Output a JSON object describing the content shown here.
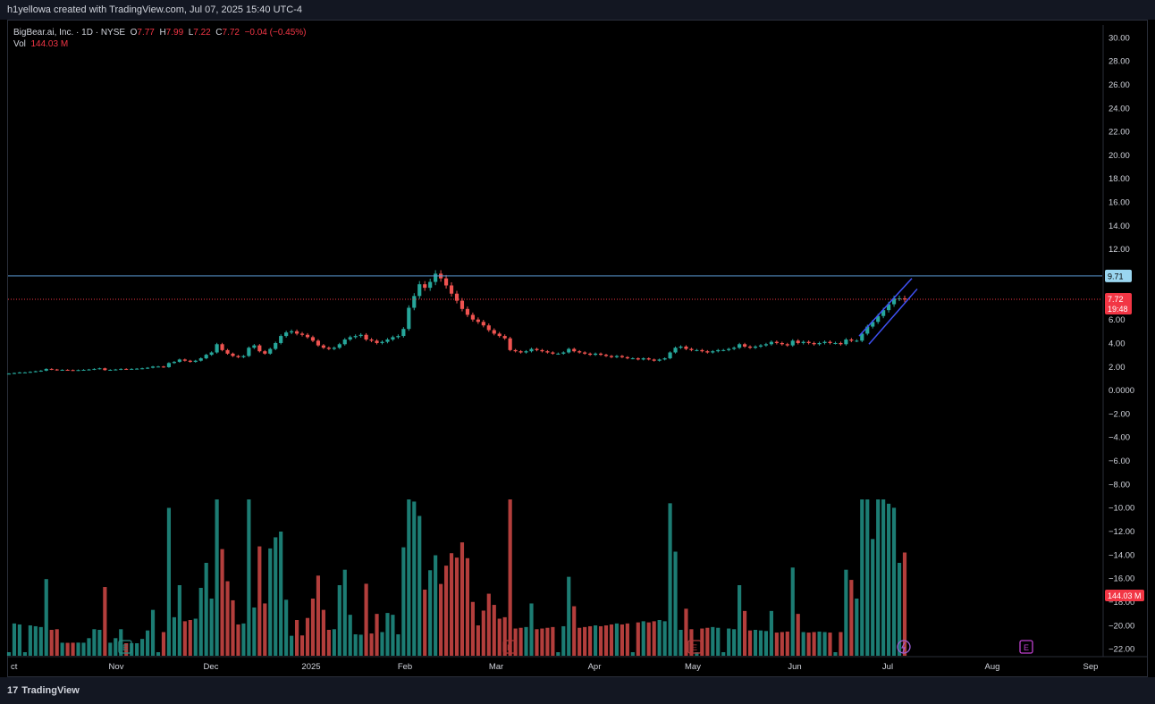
{
  "header": {
    "attribution": "h1yellowa created with TradingView.com, Jul 07, 2025 15:40 UTC-4"
  },
  "legend": {
    "symbol": "BigBear.ai, Inc. · 1D · NYSE",
    "o_label": "O",
    "o_value": "7.77",
    "h_label": "H",
    "h_value": "7.99",
    "l_label": "L",
    "l_value": "7.22",
    "c_label": "C",
    "c_value": "7.72",
    "change": "−0.04 (−0.45%)",
    "vol_label": "Vol",
    "vol_value": "144.03 M"
  },
  "footer": {
    "brand": "TradingView"
  },
  "colors": {
    "up": "#26a69a",
    "down": "#ef5350",
    "background": "#000000",
    "hline": "#5b9bd5",
    "channel": "#3f51f5",
    "last_price": "#f23645"
  },
  "chart_data": {
    "type": "candlestick",
    "price_axis": {
      "ticks": [
        "30.00",
        "28.00",
        "26.00",
        "24.00",
        "22.00",
        "20.00",
        "18.00",
        "16.00",
        "14.00",
        "12.00",
        "6.00",
        "4.00",
        "2.00",
        "0.0000",
        "−2.00",
        "−4.00",
        "−6.00",
        "−8.00",
        "−10.00",
        "−12.00",
        "−14.00",
        "−16.00",
        "−18.00",
        "−20.00",
        "−22.00"
      ],
      "range": [
        -22.6,
        30.9
      ]
    },
    "time_axis": [
      "ct",
      "Nov",
      "Dec",
      "2025",
      "Feb",
      "Mar",
      "Apr",
      "May",
      "Jun",
      "Jul",
      "Aug",
      "Sep"
    ],
    "horizontal_line": {
      "price": 9.71,
      "label": "9.71"
    },
    "last_price": {
      "price": 7.72,
      "label": "7.72",
      "countdown": "19:48"
    },
    "last_volume": {
      "label": "144.03 M"
    },
    "price_series": [
      {
        "d": "Oct",
        "v": [
          1.4,
          1.45,
          1.5,
          1.5,
          1.55,
          1.6,
          1.65,
          1.8,
          1.75,
          1.7,
          1.72,
          1.7,
          1.68,
          1.7,
          1.72,
          1.75,
          1.8,
          1.85
        ]
      },
      {
        "d": "Nov",
        "v": [
          1.7,
          1.72,
          1.75,
          1.8,
          1.78,
          1.8,
          1.82,
          1.85,
          1.9,
          2.0,
          2.0,
          1.95,
          2.3,
          2.4,
          2.6,
          2.5,
          2.4
        ]
      },
      {
        "d": "Dec",
        "v": [
          2.5,
          2.7,
          3.0,
          3.2,
          3.9,
          3.4,
          3.1,
          2.9,
          2.8,
          2.9,
          3.6,
          3.8,
          3.3,
          3.1,
          3.5,
          4.0,
          4.6,
          4.9,
          5.0,
          4.8,
          4.7,
          4.5,
          4.2
        ]
      },
      {
        "d": "2025",
        "v": [
          3.8,
          3.6,
          3.5,
          3.6,
          3.9,
          4.3,
          4.5,
          4.6,
          4.7,
          4.3,
          4.2,
          4.0,
          4.1,
          4.3,
          4.5,
          4.6,
          5.2,
          7.0,
          8.0,
          9.0,
          8.7,
          9.2,
          9.9,
          9.5,
          8.9,
          8.2,
          7.6,
          6.9,
          6.4,
          6.0,
          5.8,
          5.5,
          5.1,
          4.8,
          4.6,
          4.4
        ]
      },
      {
        "d": "Mar",
        "v": [
          3.4,
          3.3,
          3.2,
          3.3,
          3.5,
          3.4,
          3.3,
          3.2,
          3.1,
          3.1,
          3.2,
          3.5,
          3.3,
          3.2,
          3.1,
          3.0,
          3.1,
          3.0,
          2.9,
          2.8,
          2.9,
          2.8,
          2.7,
          2.7
        ]
      },
      {
        "d": "Apr",
        "v": [
          2.6,
          2.7,
          2.6,
          2.5,
          2.6,
          2.7,
          3.2,
          3.6,
          3.7,
          3.5,
          3.4,
          3.4,
          3.3,
          3.2,
          3.3,
          3.4,
          3.4,
          3.5,
          3.6,
          3.9,
          3.7,
          3.6,
          3.7,
          3.8,
          3.9,
          4.1,
          4.0,
          3.9,
          3.8
        ]
      },
      {
        "d": "Jun",
        "v": [
          4.2,
          4.0,
          4.1,
          4.0,
          3.9,
          4.0,
          4.1,
          4.0,
          4.0,
          3.9,
          4.3,
          4.2,
          4.2,
          4.8,
          5.4,
          5.8,
          6.3,
          6.8,
          7.3,
          7.8,
          7.8,
          7.7
        ]
      }
    ],
    "channel": {
      "from_date": "late Jun",
      "to_date": "Jul 07"
    }
  }
}
